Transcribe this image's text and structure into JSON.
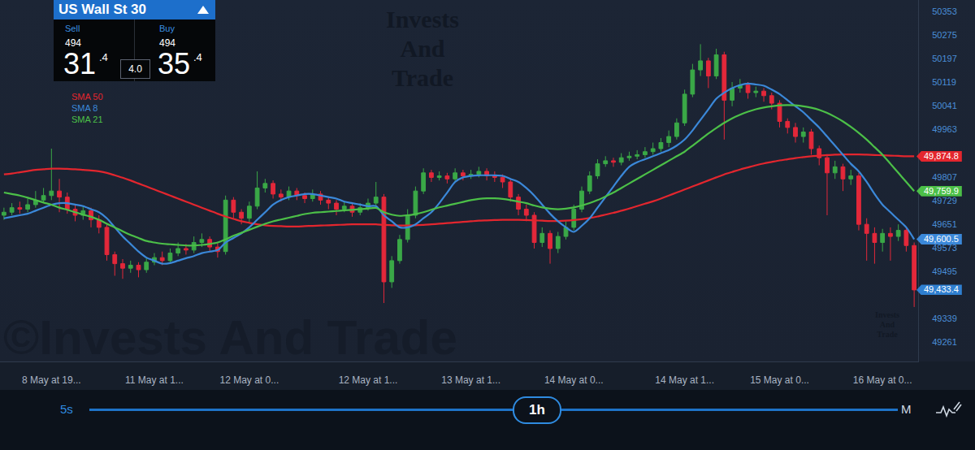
{
  "chart_data": {
    "type": "candlestick",
    "title": "US Wall St 30",
    "quote": {
      "sell": {
        "label": "Sell",
        "big_figure": "494",
        "pips": "31",
        "fraction": ".4"
      },
      "buy": {
        "label": "Buy",
        "big_figure": "494",
        "pips": "35",
        "fraction": ".4"
      },
      "spread": "4.0"
    },
    "categories": [
      null,
      null,
      null,
      null,
      null,
      null,
      "8 May at 19...",
      null,
      null,
      null,
      null,
      null,
      null,
      null,
      null,
      null,
      null,
      null,
      null,
      "11 May at 1...",
      null,
      null,
      null,
      null,
      null,
      null,
      null,
      null,
      null,
      null,
      null,
      "12 May at 0...",
      null,
      null,
      null,
      null,
      null,
      null,
      null,
      null,
      null,
      null,
      null,
      null,
      null,
      null,
      "12 May at 1...",
      null,
      null,
      null,
      null,
      null,
      null,
      null,
      null,
      null,
      null,
      null,
      null,
      "13 May at 1...",
      null,
      null,
      null,
      null,
      null,
      null,
      null,
      null,
      null,
      null,
      null,
      null,
      "14 May at 0...",
      null,
      null,
      null,
      null,
      null,
      null,
      null,
      null,
      null,
      null,
      null,
      null,
      null,
      "14 May at 1...",
      null,
      null,
      null,
      null,
      null,
      null,
      null,
      null,
      null,
      null,
      null,
      "15 May at 0...",
      null,
      null,
      null,
      null,
      null,
      null,
      null,
      null,
      null,
      null,
      null,
      null,
      "16 May at 0...",
      null,
      null,
      null,
      null
    ],
    "candles": {
      "open": [
        49680,
        49690,
        49705,
        49700,
        49715,
        49730,
        49745,
        49760,
        49740,
        49700,
        49680,
        49695,
        49665,
        49640,
        49550,
        49520,
        49505,
        49515,
        49500,
        49525,
        49540,
        49530,
        49555,
        49570,
        49565,
        49590,
        49600,
        49575,
        49560,
        49730,
        49690,
        49670,
        49710,
        49770,
        49785,
        49750,
        49740,
        49760,
        49745,
        49735,
        49750,
        49730,
        49720,
        49700,
        49710,
        49690,
        49705,
        49720,
        49740,
        49460,
        49530,
        49600,
        49680,
        49760,
        49820,
        49805,
        49810,
        49800,
        49820,
        49810,
        49815,
        49825,
        49810,
        49805,
        49790,
        49740,
        49700,
        49680,
        49590,
        49620,
        49570,
        49610,
        49640,
        49700,
        49760,
        49810,
        49850,
        49860,
        49855,
        49870,
        49875,
        49880,
        49890,
        49900,
        49920,
        49940,
        49985,
        50080,
        50160,
        50190,
        50140,
        50210,
        50060,
        50100,
        50110,
        50085,
        50090,
        50075,
        50050,
        49990,
        49970,
        49940,
        49955,
        49900,
        49870,
        49820,
        49840,
        49800,
        49810,
        49650,
        49620,
        49590,
        49620,
        49610,
        49630,
        49580
      ],
      "high": [
        49705,
        49720,
        49725,
        49735,
        49760,
        49770,
        49900,
        49800,
        49755,
        49715,
        49710,
        49705,
        49680,
        49650,
        49560,
        49535,
        49530,
        49525,
        49540,
        49555,
        49560,
        49570,
        49590,
        49585,
        49610,
        49620,
        49610,
        49590,
        49745,
        49740,
        49700,
        49725,
        49825,
        49800,
        49795,
        49765,
        49775,
        49770,
        49755,
        49765,
        49760,
        49740,
        49730,
        49725,
        49720,
        49720,
        49735,
        49790,
        49750,
        49545,
        49615,
        49700,
        49775,
        49835,
        49830,
        49825,
        49820,
        49835,
        49830,
        49830,
        49840,
        49835,
        49825,
        49815,
        49800,
        49750,
        49715,
        49690,
        49640,
        49630,
        49625,
        49660,
        49715,
        49775,
        49825,
        49865,
        49875,
        49870,
        49885,
        49890,
        49895,
        49905,
        49920,
        49935,
        49960,
        50000,
        50095,
        50180,
        50245,
        50200,
        50230,
        50220,
        50120,
        50130,
        50120,
        50105,
        50100,
        50085,
        50060,
        50000,
        49985,
        49970,
        49965,
        49910,
        49880,
        49860,
        49850,
        49830,
        49820,
        49670,
        49640,
        49635,
        49640,
        49650,
        49640,
        49590
      ],
      "low": [
        49665,
        49680,
        49685,
        49690,
        49705,
        49720,
        49730,
        49690,
        49685,
        49660,
        49665,
        49640,
        49620,
        49530,
        49480,
        49470,
        49490,
        49475,
        49490,
        49515,
        49515,
        49520,
        49545,
        49550,
        49555,
        49575,
        49560,
        49540,
        49550,
        49670,
        49650,
        49655,
        49700,
        49755,
        49735,
        49725,
        49730,
        49730,
        49720,
        49725,
        49715,
        49700,
        49680,
        49690,
        49675,
        49680,
        49695,
        49710,
        49390,
        49440,
        49520,
        49590,
        49670,
        49750,
        49790,
        49795,
        49785,
        49790,
        49795,
        49800,
        49805,
        49795,
        49790,
        49770,
        49725,
        49680,
        49660,
        49570,
        49575,
        49520,
        49555,
        49600,
        49630,
        49690,
        49750,
        49800,
        49840,
        49840,
        49845,
        49860,
        49865,
        49870,
        49880,
        49890,
        49905,
        49930,
        49975,
        50070,
        50140,
        50100,
        50130,
        49930,
        50040,
        50085,
        50065,
        50070,
        50055,
        50030,
        49970,
        49950,
        49920,
        49920,
        49880,
        49845,
        49680,
        49800,
        49760,
        49780,
        49630,
        49530,
        49520,
        49560,
        49530,
        49595,
        49560,
        49377
      ],
      "close": [
        49690,
        49705,
        49700,
        49715,
        49730,
        49745,
        49760,
        49740,
        49700,
        49680,
        49695,
        49665,
        49640,
        49550,
        49520,
        49505,
        49515,
        49500,
        49525,
        49540,
        49530,
        49555,
        49570,
        49565,
        49590,
        49600,
        49575,
        49560,
        49730,
        49690,
        49670,
        49710,
        49770,
        49785,
        49750,
        49740,
        49760,
        49745,
        49735,
        49750,
        49730,
        49720,
        49700,
        49710,
        49690,
        49705,
        49720,
        49740,
        49460,
        49530,
        49600,
        49680,
        49760,
        49820,
        49805,
        49810,
        49800,
        49820,
        49810,
        49815,
        49825,
        49810,
        49805,
        49790,
        49740,
        49700,
        49680,
        49590,
        49620,
        49570,
        49610,
        49640,
        49700,
        49760,
        49810,
        49850,
        49860,
        49855,
        49870,
        49875,
        49880,
        49890,
        49900,
        49920,
        49940,
        49985,
        50080,
        50160,
        50190,
        50140,
        50210,
        50060,
        50100,
        50110,
        50085,
        50090,
        50075,
        50050,
        49990,
        49970,
        49940,
        49955,
        49900,
        49870,
        49820,
        49840,
        49800,
        49810,
        49650,
        49620,
        49590,
        49620,
        49610,
        49630,
        49580,
        49433.4
      ],
      "color": {
        "up": "#3aa847",
        "down": "#e3283a"
      }
    },
    "series": [
      {
        "name": "SMA 50",
        "color": "#e3262e",
        "type": "line",
        "values": [
          49815,
          49818,
          49822,
          49826,
          49830,
          49832,
          49834,
          49834,
          49833,
          49832,
          49830,
          49828,
          49825,
          49820,
          49812,
          49804,
          49795,
          49785,
          49775,
          49765,
          49755,
          49745,
          49735,
          49725,
          49715,
          49705,
          49695,
          49685,
          49676,
          49668,
          49660,
          49655,
          49650,
          49647,
          49645,
          49644,
          49643,
          49643,
          49644,
          49645,
          49646,
          49647,
          49648,
          49649,
          49650,
          49650,
          49650,
          49650,
          49648,
          49647,
          49646,
          49646,
          49647,
          49648,
          49650,
          49652,
          49654,
          49656,
          49658,
          49660,
          49662,
          49663,
          49664,
          49665,
          49665,
          49665,
          49664,
          49663,
          49662,
          49661,
          49661,
          49662,
          49664,
          49667,
          49671,
          49676,
          49682,
          49688,
          49695,
          49702,
          49710,
          49718,
          49726,
          49735,
          49745,
          49755,
          49765,
          49775,
          49785,
          49795,
          49805,
          49815,
          49823,
          49831,
          49838,
          49845,
          49851,
          49856,
          49861,
          49865,
          49869,
          49872,
          49875,
          49877,
          49879,
          49880,
          49881,
          49881,
          49881,
          49880,
          49879,
          49878,
          49877,
          49876,
          49875,
          49874.8
        ]
      },
      {
        "name": "SMA 8",
        "color": "#3b88d9",
        "type": "line",
        "values": [
          49670,
          49675,
          49680,
          49685,
          49695,
          49705,
          49715,
          49720,
          49720,
          49715,
          49710,
          49700,
          49690,
          49670,
          49640,
          49610,
          49585,
          49560,
          49540,
          49530,
          49520,
          49522,
          49530,
          49538,
          49545,
          49555,
          49560,
          49565,
          49590,
          49605,
          49620,
          49640,
          49665,
          49690,
          49715,
          49730,
          49740,
          49745,
          49750,
          49750,
          49745,
          49740,
          49735,
          49725,
          49720,
          49715,
          49710,
          49710,
          49680,
          49660,
          49640,
          49640,
          49650,
          49670,
          49690,
          49720,
          49755,
          49790,
          49805,
          49810,
          49812,
          49812,
          49812,
          49810,
          49800,
          49790,
          49770,
          49745,
          49715,
          49685,
          49660,
          49640,
          49625,
          49645,
          49670,
          49705,
          49740,
          49775,
          49810,
          49840,
          49855,
          49865,
          49875,
          49885,
          49895,
          49910,
          49930,
          49960,
          49995,
          50030,
          50065,
          50085,
          50100,
          50110,
          50115,
          50112,
          50108,
          50095,
          50080,
          50060,
          50040,
          50020,
          49995,
          49970,
          49940,
          49910,
          49880,
          49850,
          49825,
          49790,
          49750,
          49715,
          49690,
          49665,
          49640,
          49600.5
        ]
      },
      {
        "name": "SMA 21",
        "color": "#4cc048",
        "type": "line",
        "values": [
          49755,
          49750,
          49745,
          49738,
          49730,
          49722,
          49715,
          49705,
          49698,
          49690,
          49682,
          49675,
          49665,
          49652,
          49640,
          49627,
          49615,
          49605,
          49595,
          49590,
          49586,
          49584,
          49582,
          49580,
          49580,
          49582,
          49585,
          49590,
          49600,
          49612,
          49622,
          49632,
          49642,
          49652,
          49660,
          49666,
          49672,
          49678,
          49684,
          49688,
          49690,
          49692,
          49694,
          49696,
          49698,
          49700,
          49702,
          49704,
          49690,
          49682,
          49678,
          49680,
          49684,
          49690,
          49698,
          49706,
          49712,
          49718,
          49724,
          49730,
          49734,
          49736,
          49736,
          49734,
          49730,
          49725,
          49720,
          49712,
          49706,
          49702,
          49700,
          49702,
          49706,
          49712,
          49720,
          49730,
          49742,
          49755,
          49770,
          49785,
          49800,
          49815,
          49830,
          49845,
          49860,
          49875,
          49890,
          49910,
          49930,
          49950,
          49968,
          49985,
          50000,
          50012,
          50022,
          50030,
          50036,
          50040,
          50043,
          50044,
          50043,
          50040,
          50035,
          50028,
          50018,
          50005,
          49990,
          49972,
          49952,
          49930,
          49905,
          49880,
          49850,
          49820,
          49790,
          49759.9
        ]
      }
    ],
    "price_labels": [
      {
        "value": 49874.8,
        "label": "49,874.8",
        "color": "#e3262e"
      },
      {
        "value": 49759.9,
        "label": "49,759.9",
        "color": "#4cc048"
      },
      {
        "value": 49600.5,
        "label": "49,600.5",
        "color": "#3b88d9"
      },
      {
        "value": 49433.4,
        "label": "49,433.4",
        "color": "#2f7fd0"
      }
    ],
    "ylim": [
      49197,
      50391
    ],
    "yticks": [
      50353,
      50275,
      50197,
      50119,
      50041,
      49963,
      49807,
      49729,
      49651,
      49573,
      49495,
      49339,
      49261
    ],
    "grid": false,
    "legend": "top-left",
    "timeframe": {
      "min": "5s",
      "selected": "1h",
      "max": "M"
    },
    "watermark": {
      "lines": [
        "Invests",
        "And",
        "Trade"
      ],
      "copyright": "©Invests And Trade"
    }
  }
}
